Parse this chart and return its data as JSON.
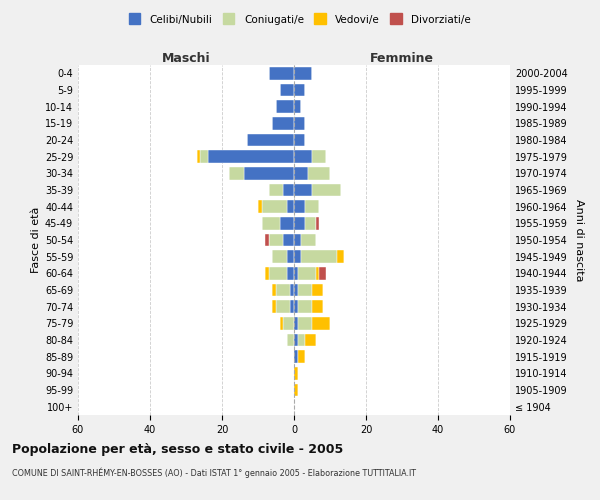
{
  "age_groups": [
    "100+",
    "95-99",
    "90-94",
    "85-89",
    "80-84",
    "75-79",
    "70-74",
    "65-69",
    "60-64",
    "55-59",
    "50-54",
    "45-49",
    "40-44",
    "35-39",
    "30-34",
    "25-29",
    "20-24",
    "15-19",
    "10-14",
    "5-9",
    "0-4"
  ],
  "birth_years": [
    "≤ 1904",
    "1905-1909",
    "1910-1914",
    "1915-1919",
    "1920-1924",
    "1925-1929",
    "1930-1934",
    "1935-1939",
    "1940-1944",
    "1945-1949",
    "1950-1954",
    "1955-1959",
    "1960-1964",
    "1965-1969",
    "1970-1974",
    "1975-1979",
    "1980-1984",
    "1985-1989",
    "1990-1994",
    "1995-1999",
    "2000-2004"
  ],
  "male": {
    "celibe": [
      0,
      0,
      0,
      0,
      0,
      0,
      1,
      1,
      2,
      2,
      3,
      4,
      2,
      3,
      14,
      24,
      13,
      6,
      5,
      4,
      7
    ],
    "coniugato": [
      0,
      0,
      0,
      0,
      2,
      3,
      4,
      4,
      5,
      4,
      4,
      5,
      7,
      4,
      4,
      2,
      0,
      0,
      0,
      0,
      0
    ],
    "vedovo": [
      0,
      0,
      0,
      0,
      0,
      1,
      1,
      1,
      1,
      0,
      0,
      0,
      1,
      0,
      0,
      1,
      0,
      0,
      0,
      0,
      0
    ],
    "divorziato": [
      0,
      0,
      0,
      0,
      0,
      0,
      0,
      0,
      0,
      0,
      1,
      0,
      0,
      0,
      0,
      0,
      0,
      0,
      0,
      0,
      0
    ]
  },
  "female": {
    "nubile": [
      0,
      0,
      0,
      1,
      1,
      1,
      1,
      1,
      1,
      2,
      2,
      3,
      3,
      5,
      4,
      5,
      3,
      3,
      2,
      3,
      5
    ],
    "coniugata": [
      0,
      0,
      0,
      0,
      2,
      4,
      4,
      4,
      5,
      10,
      4,
      3,
      4,
      8,
      6,
      4,
      0,
      0,
      0,
      0,
      0
    ],
    "vedova": [
      0,
      1,
      1,
      2,
      3,
      5,
      3,
      3,
      1,
      2,
      0,
      0,
      0,
      0,
      0,
      0,
      0,
      0,
      0,
      0,
      0
    ],
    "divorziata": [
      0,
      0,
      0,
      0,
      0,
      0,
      0,
      0,
      2,
      0,
      0,
      1,
      0,
      0,
      0,
      0,
      0,
      0,
      0,
      0,
      0
    ]
  },
  "color_celibe": "#4472c4",
  "color_coniugato": "#c6d9a0",
  "color_vedovo": "#ffc000",
  "color_divorziato": "#c0504d",
  "xlim": 60,
  "title": "Popolazione per età, sesso e stato civile - 2005",
  "subtitle": "COMUNE DI SAINT-RHÉMY-EN-BOSSES (AO) - Dati ISTAT 1° gennaio 2005 - Elaborazione TUTTITALIA.IT",
  "ylabel_left": "Fasce di età",
  "ylabel_right": "Anni di nascita",
  "label_maschi": "Maschi",
  "label_femmine": "Femmine",
  "legend_labels": [
    "Celibi/Nubili",
    "Coniugati/e",
    "Vedovi/e",
    "Divorziati/e"
  ],
  "bg_color": "#f0f0f0",
  "plot_bg_color": "#ffffff"
}
